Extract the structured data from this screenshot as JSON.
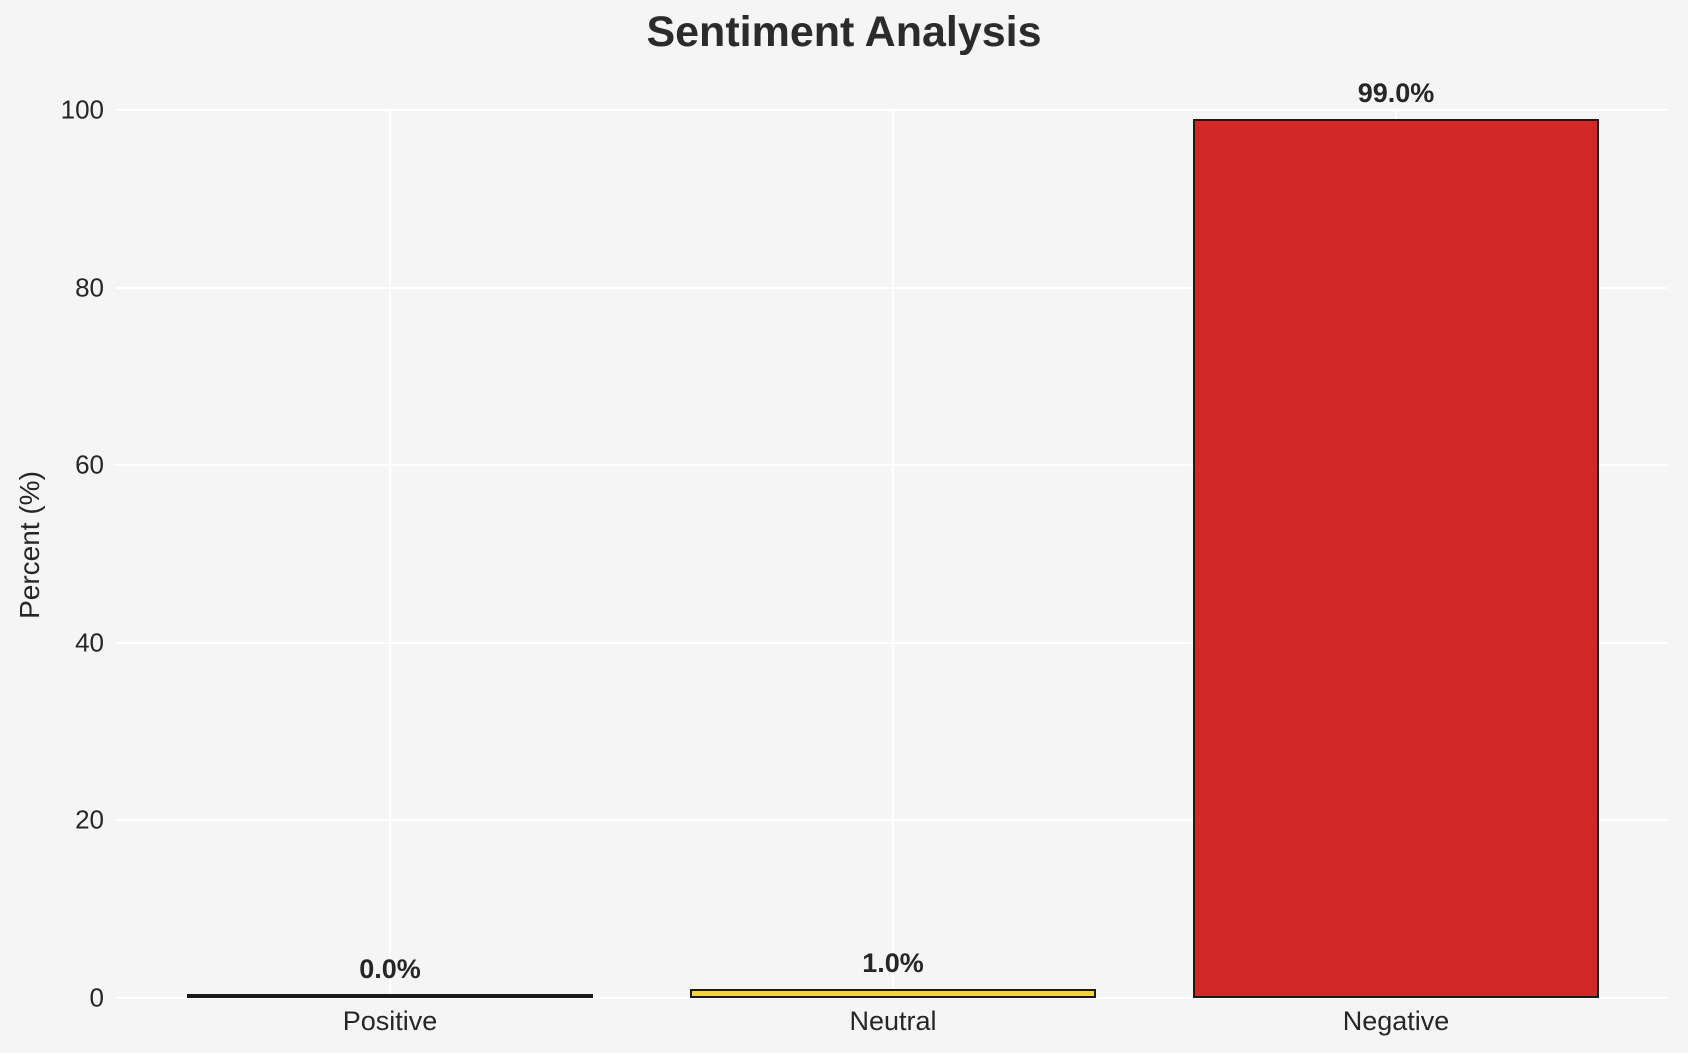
{
  "title": "Sentiment Analysis",
  "chart_data": {
    "type": "bar",
    "title": "Sentiment Analysis",
    "categories": [
      "Positive",
      "Neutral",
      "Negative"
    ],
    "values": [
      0.0,
      1.0,
      99.0
    ],
    "bar_labels": [
      "0.0%",
      "1.0%",
      "99.0%"
    ],
    "bar_colors": [
      null,
      "#f5d33c",
      "#d32828"
    ],
    "bar_edge_color": "#1a1a1a",
    "xlabel": "",
    "ylabel": "Percent (%)",
    "ylim": [
      0,
      100
    ],
    "yticks": [
      0,
      20,
      40,
      60,
      80,
      100
    ],
    "grid": "on",
    "grid_color": "#ffffff",
    "background_color": "#f5f5f5",
    "legend": "none"
  }
}
